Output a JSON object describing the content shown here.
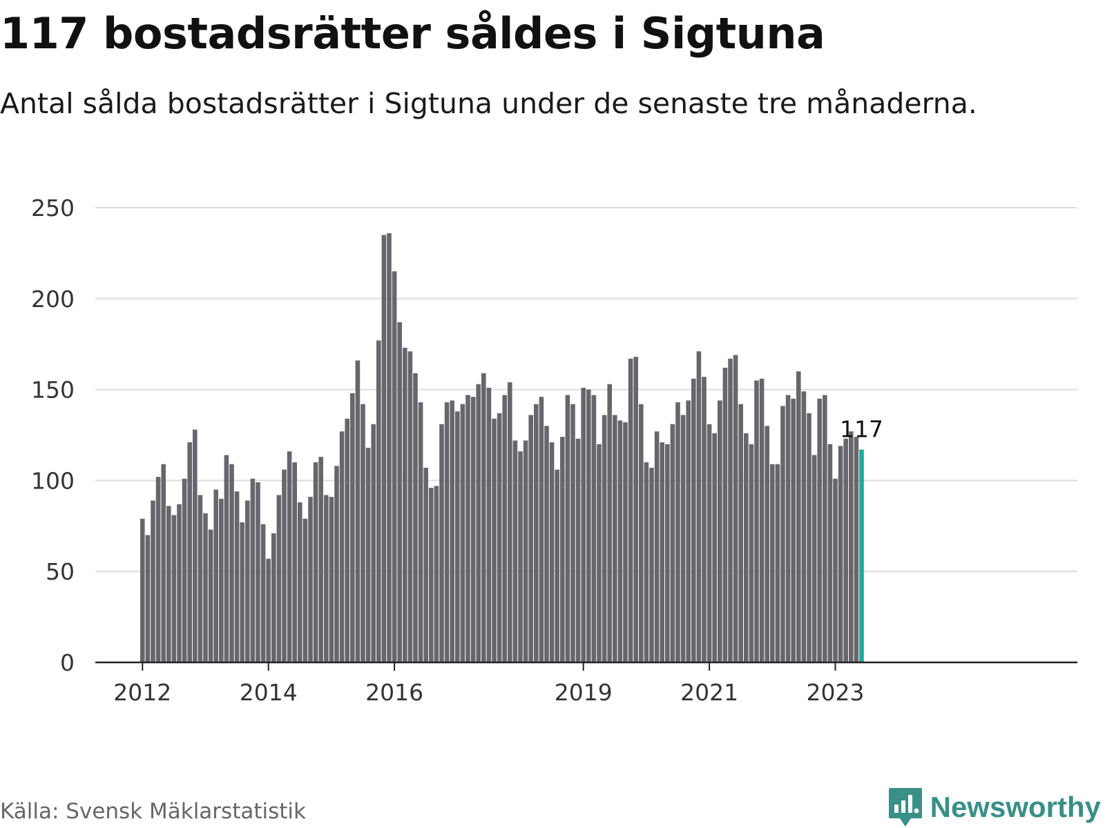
{
  "header": {
    "title": "117 bostadsrätter såldes i Sigtuna",
    "subtitle": "Antal sålda bostadsrätter i Sigtuna under de senaste tre månaderna."
  },
  "footer": {
    "source": "Källa: Svensk Mäklarstatistik",
    "brand": "Newsworthy",
    "brand_icon": "newsworthy-logo-icon"
  },
  "colors": {
    "bar": "#67666c",
    "highlight": "#1fa99a",
    "grid": "#dddddd",
    "axis": "#222222",
    "tick_text": "#333333",
    "brand": "#3a8f86"
  },
  "chart_data": {
    "type": "bar",
    "title": "117 bostadsrätter såldes i Sigtuna",
    "xlabel": "",
    "ylabel": "",
    "ylim": [
      0,
      250
    ],
    "yticks": [
      0,
      50,
      100,
      150,
      200,
      250
    ],
    "grid": true,
    "start": "2012-01",
    "frequency": "monthly",
    "xticks": [
      {
        "label": "2012",
        "index": 0
      },
      {
        "label": "2014",
        "index": 24
      },
      {
        "label": "2016",
        "index": 48
      },
      {
        "label": "2019",
        "index": 84
      },
      {
        "label": "2021",
        "index": 108
      },
      {
        "label": "2023",
        "index": 132
      }
    ],
    "values": [
      79,
      70,
      89,
      102,
      109,
      86,
      81,
      87,
      101,
      121,
      128,
      92,
      82,
      73,
      95,
      90,
      114,
      109,
      94,
      77,
      89,
      101,
      99,
      76,
      57,
      71,
      92,
      106,
      116,
      110,
      88,
      79,
      91,
      110,
      113,
      92,
      91,
      108,
      127,
      134,
      148,
      166,
      142,
      118,
      131,
      177,
      235,
      236,
      215,
      187,
      173,
      171,
      159,
      143,
      107,
      96,
      97,
      131,
      143,
      144,
      138,
      142,
      147,
      146,
      153,
      159,
      151,
      134,
      137,
      147,
      154,
      122,
      116,
      122,
      136,
      142,
      146,
      130,
      121,
      106,
      124,
      147,
      142,
      123,
      151,
      150,
      147,
      120,
      136,
      153,
      136,
      133,
      132,
      167,
      168,
      142,
      110,
      107,
      127,
      121,
      120,
      131,
      143,
      136,
      144,
      156,
      171,
      157,
      131,
      126,
      144,
      162,
      167,
      169,
      142,
      126,
      120,
      155,
      156,
      130,
      109,
      109,
      141,
      147,
      145,
      160,
      149,
      137,
      114,
      145,
      147,
      120,
      101,
      119,
      123,
      127,
      124,
      117
    ],
    "highlight_index": 137,
    "highlight_label": "117"
  }
}
